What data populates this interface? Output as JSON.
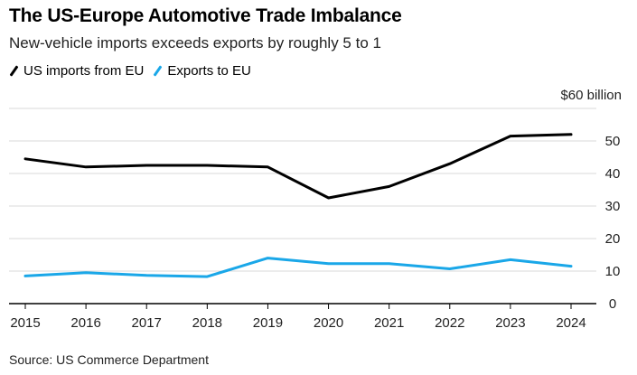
{
  "title": "The US-Europe Automotive Trade Imbalance",
  "subtitle": "New-vehicle imports exceeds exports by roughly 5 to 1",
  "source": "Source: US Commerce Department",
  "colors": {
    "imports": "#000000",
    "exports": "#1aa7e8",
    "grid": "#d9d9d9",
    "axis": "#000000"
  },
  "chart_data": {
    "type": "line",
    "title": "The US-Europe Automotive Trade Imbalance",
    "xlabel": "",
    "ylabel": "$ billion",
    "x": [
      "2015",
      "2016",
      "2017",
      "2018",
      "2019",
      "2020",
      "2021",
      "2022",
      "2023",
      "2024"
    ],
    "series": [
      {
        "name": "US imports from EU",
        "values": [
          44.5,
          42,
          42.5,
          42.5,
          42,
          32.5,
          36,
          43,
          51.5,
          52
        ]
      },
      {
        "name": "Exports to EU",
        "values": [
          8.5,
          9.5,
          8.7,
          8.3,
          14,
          12.3,
          12.3,
          10.7,
          13.5,
          11.5
        ]
      }
    ],
    "ylim": [
      0,
      60
    ],
    "y_ticks": [
      0,
      10,
      20,
      30,
      40,
      50,
      60
    ],
    "y_tick_labels": [
      "0",
      "10",
      "20",
      "30",
      "40",
      "50",
      "$60 billion"
    ],
    "grid": true,
    "legend": "top-left"
  }
}
